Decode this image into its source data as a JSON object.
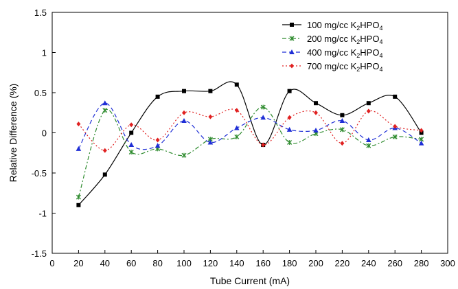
{
  "chart_data": {
    "type": "line",
    "xlabel": "Tube Current (mA)",
    "ylabel": "Relative Difference (%)",
    "xlim": [
      0,
      300
    ],
    "ylim": [
      -1.5,
      1.5
    ],
    "xticks": [
      0,
      20,
      40,
      60,
      80,
      100,
      120,
      140,
      160,
      180,
      200,
      220,
      240,
      260,
      280,
      300
    ],
    "yticks": [
      -1.5,
      -1,
      -0.5,
      0,
      0.5,
      1,
      1.5
    ],
    "ytick_labels": [
      "-1.5",
      "-1",
      "-0.5",
      "0",
      "0.5",
      "1",
      "1.5"
    ],
    "grid": false,
    "legend_position": "top-right",
    "x": [
      20,
      40,
      60,
      80,
      100,
      120,
      140,
      160,
      180,
      200,
      220,
      240,
      260,
      280
    ],
    "series": [
      {
        "name": "100 mg/cc K2HPO4",
        "legend": {
          "pre": "100 mg/cc K",
          "sub1": "2",
          "mid": "HPO",
          "sub2": "4"
        },
        "color": "#000000",
        "marker": "square",
        "dash": "",
        "values": [
          -0.9,
          -0.52,
          0.0,
          0.45,
          0.52,
          0.52,
          0.6,
          -0.15,
          0.52,
          0.37,
          0.22,
          0.37,
          0.45,
          0.0
        ]
      },
      {
        "name": "200 mg/cc K2HPO4",
        "legend": {
          "pre": "200 mg/cc K",
          "sub1": "2",
          "mid": "HPO",
          "sub2": "4"
        },
        "color": "#2e8b2e",
        "marker": "x",
        "dash": "6,3,2,3",
        "values": [
          -0.8,
          0.28,
          -0.24,
          -0.2,
          -0.28,
          -0.08,
          -0.05,
          0.32,
          -0.12,
          -0.01,
          0.04,
          -0.16,
          -0.05,
          -0.08
        ]
      },
      {
        "name": "400 mg/cc K2HPO4",
        "legend": {
          "pre": "400 mg/cc K",
          "sub1": "2",
          "mid": "HPO",
          "sub2": "4"
        },
        "color": "#1f2fd6",
        "marker": "triangle",
        "dash": "6,4",
        "values": [
          -0.2,
          0.37,
          -0.15,
          -0.16,
          0.15,
          -0.12,
          0.06,
          0.19,
          0.04,
          0.03,
          0.15,
          -0.09,
          0.06,
          -0.13
        ]
      },
      {
        "name": "700 mg/cc K2HPO4",
        "legend": {
          "pre": "700 mg/cc K",
          "sub1": "2",
          "mid": "HPO",
          "sub2": "4"
        },
        "color": "#e02020",
        "marker": "diamond",
        "dash": "2,3",
        "values": [
          0.11,
          -0.22,
          0.1,
          -0.09,
          0.25,
          0.2,
          0.28,
          -0.15,
          0.19,
          0.25,
          -0.13,
          0.27,
          0.08,
          0.03
        ]
      }
    ]
  }
}
